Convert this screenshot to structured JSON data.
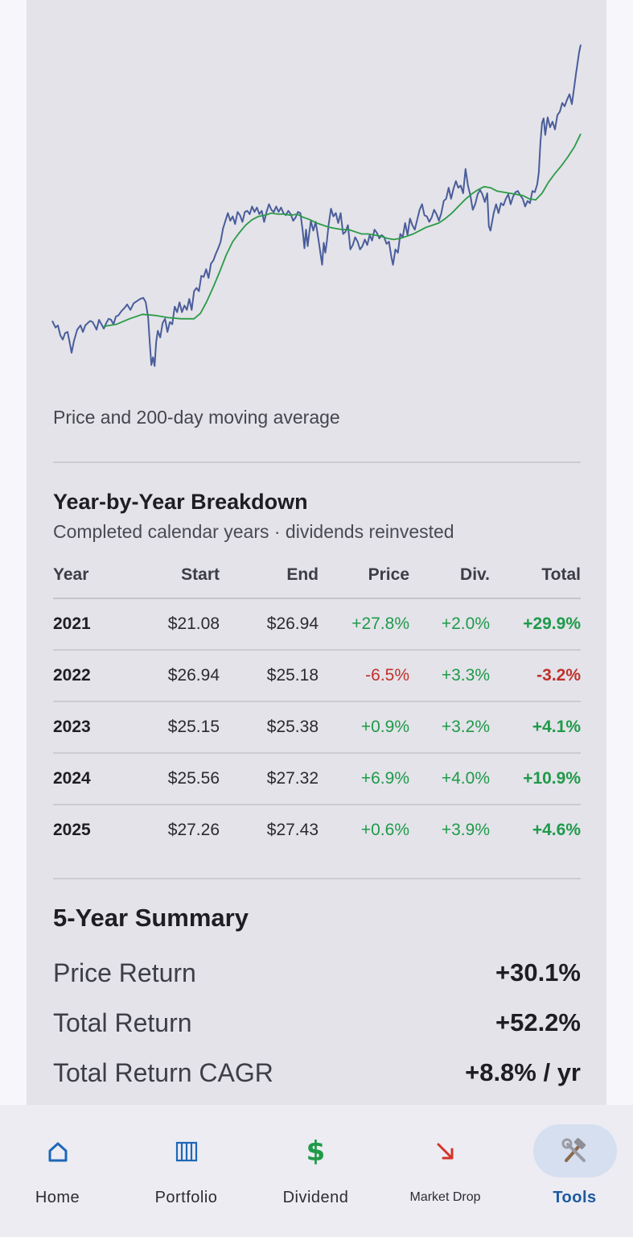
{
  "chart_data": {
    "type": "line",
    "title": "",
    "caption": "Price and 200-day moving average",
    "grid": false,
    "legend": "none",
    "series": [
      {
        "color": "#4a5d9b",
        "values": [
          [
            0,
            21.5
          ],
          [
            4,
            20.9
          ],
          [
            7,
            21.1
          ],
          [
            10,
            20.2
          ],
          [
            13,
            19.8
          ],
          [
            16,
            20.4
          ],
          [
            19,
            20.5
          ],
          [
            22,
            19.4
          ],
          [
            24,
            18.6
          ],
          [
            27,
            19.7
          ],
          [
            31,
            20.7
          ],
          [
            35,
            21.1
          ],
          [
            38,
            20.5
          ],
          [
            41,
            21.1
          ],
          [
            44,
            21.3
          ],
          [
            47,
            21.5
          ],
          [
            50,
            21.4
          ],
          [
            53,
            21.0
          ],
          [
            55,
            20.7
          ],
          [
            58,
            21.6
          ],
          [
            61,
            21.2
          ],
          [
            64,
            20.8
          ],
          [
            67,
            21.3
          ],
          [
            70,
            21.7
          ],
          [
            73,
            21.6
          ],
          [
            76,
            21.2
          ],
          [
            79,
            21.9
          ],
          [
            82,
            22.0
          ],
          [
            86,
            22.4
          ],
          [
            90,
            22.7
          ],
          [
            93,
            23.0
          ],
          [
            97,
            22.5
          ],
          [
            101,
            23.1
          ],
          [
            105,
            23.3
          ],
          [
            109,
            23.5
          ],
          [
            113,
            23.6
          ],
          [
            116,
            23.2
          ],
          [
            119,
            21.8
          ],
          [
            121,
            19.5
          ],
          [
            123,
            17.5
          ],
          [
            125,
            18.2
          ],
          [
            127,
            17.4
          ],
          [
            129,
            19.6
          ],
          [
            131,
            20.6
          ],
          [
            134,
            20.0
          ],
          [
            137,
            21.3
          ],
          [
            140,
            21.7
          ],
          [
            143,
            20.5
          ],
          [
            146,
            21.4
          ],
          [
            149,
            21.2
          ],
          [
            152,
            22.8
          ],
          [
            155,
            22.3
          ],
          [
            158,
            23.2
          ],
          [
            161,
            22.3
          ],
          [
            164,
            22.9
          ],
          [
            167,
            22.5
          ],
          [
            170,
            23.5
          ],
          [
            173,
            22.5
          ],
          [
            176,
            24.2
          ],
          [
            179,
            24.5
          ],
          [
            182,
            24.2
          ],
          [
            185,
            25.6
          ],
          [
            188,
            25.5
          ],
          [
            191,
            26.2
          ],
          [
            194,
            25.4
          ],
          [
            197,
            26.7
          ],
          [
            200,
            27.0
          ],
          [
            203,
            27.6
          ],
          [
            206,
            28.1
          ],
          [
            209,
            28.7
          ],
          [
            212,
            29.9
          ],
          [
            215,
            30.6
          ],
          [
            218,
            31.3
          ],
          [
            221,
            30.6
          ],
          [
            224,
            31.0
          ],
          [
            227,
            30.3
          ],
          [
            230,
            31.4
          ],
          [
            233,
            31.1
          ],
          [
            236,
            30.5
          ],
          [
            239,
            31.4
          ],
          [
            242,
            31.5
          ],
          [
            245,
            31.2
          ],
          [
            248,
            31.9
          ],
          [
            251,
            31.4
          ],
          [
            254,
            31.8
          ],
          [
            257,
            31.2
          ],
          [
            260,
            31.5
          ],
          [
            263,
            30.5
          ],
          [
            266,
            31.4
          ],
          [
            269,
            32.1
          ],
          [
            272,
            31.6
          ],
          [
            275,
            31.4
          ],
          [
            278,
            31.9
          ],
          [
            281,
            31.4
          ],
          [
            284,
            31.8
          ],
          [
            287,
            31.3
          ],
          [
            290,
            31.1
          ],
          [
            293,
            31.5
          ],
          [
            296,
            31.2
          ],
          [
            299,
            30.6
          ],
          [
            302,
            30.9
          ],
          [
            305,
            31.4
          ],
          [
            308,
            31.3
          ],
          [
            311,
            29.6
          ],
          [
            313,
            28.1
          ],
          [
            315,
            29.8
          ],
          [
            317,
            28.3
          ],
          [
            319,
            29.5
          ],
          [
            321,
            30.6
          ],
          [
            324,
            29.7
          ],
          [
            327,
            30.5
          ],
          [
            330,
            29.1
          ],
          [
            333,
            27.6
          ],
          [
            335,
            26.6
          ],
          [
            337,
            28.6
          ],
          [
            339,
            27.7
          ],
          [
            341,
            28.8
          ],
          [
            343,
            30.2
          ],
          [
            346,
            31.7
          ],
          [
            349,
            31.0
          ],
          [
            352,
            31.3
          ],
          [
            355,
            30.4
          ],
          [
            358,
            31.3
          ],
          [
            361,
            29.4
          ],
          [
            364,
            29.6
          ],
          [
            367,
            30.2
          ],
          [
            370,
            28.0
          ],
          [
            373,
            28.4
          ],
          [
            376,
            29.1
          ],
          [
            379,
            28.7
          ],
          [
            382,
            28.0
          ],
          [
            385,
            28.3
          ],
          [
            388,
            28.9
          ],
          [
            391,
            28.4
          ],
          [
            394,
            29.3
          ],
          [
            397,
            28.8
          ],
          [
            400,
            29.8
          ],
          [
            403,
            29.5
          ],
          [
            406,
            29.0
          ],
          [
            409,
            29.3
          ],
          [
            412,
            29.1
          ],
          [
            415,
            28.5
          ],
          [
            418,
            28.7
          ],
          [
            421,
            27.3
          ],
          [
            423,
            26.6
          ],
          [
            426,
            28.0
          ],
          [
            429,
            27.7
          ],
          [
            432,
            29.4
          ],
          [
            435,
            29.1
          ],
          [
            438,
            30.4
          ],
          [
            441,
            29.3
          ],
          [
            444,
            30.8
          ],
          [
            447,
            30.2
          ],
          [
            450,
            29.8
          ],
          [
            453,
            30.7
          ],
          [
            456,
            31.6
          ],
          [
            459,
            32.1
          ],
          [
            462,
            31.1
          ],
          [
            465,
            31.0
          ],
          [
            468,
            30.5
          ],
          [
            471,
            30.9
          ],
          [
            474,
            31.6
          ],
          [
            477,
            31.2
          ],
          [
            480,
            30.6
          ],
          [
            483,
            31.3
          ],
          [
            486,
            32.4
          ],
          [
            489,
            32.6
          ],
          [
            492,
            33.6
          ],
          [
            495,
            32.6
          ],
          [
            498,
            33.5
          ],
          [
            501,
            34.2
          ],
          [
            504,
            33.6
          ],
          [
            507,
            33.8
          ],
          [
            510,
            33.1
          ],
          [
            513,
            35.3
          ],
          [
            516,
            33.8
          ],
          [
            519,
            32.9
          ],
          [
            522,
            31.6
          ],
          [
            525,
            32.1
          ],
          [
            528,
            33.0
          ],
          [
            531,
            33.4
          ],
          [
            534,
            33.0
          ],
          [
            537,
            32.3
          ],
          [
            540,
            33.1
          ],
          [
            542,
            30.1
          ],
          [
            544,
            29.7
          ],
          [
            546,
            30.5
          ],
          [
            548,
            31.3
          ],
          [
            551,
            32.1
          ],
          [
            554,
            31.3
          ],
          [
            557,
            32.2
          ],
          [
            560,
            32.0
          ],
          [
            563,
            32.6
          ],
          [
            566,
            33.0
          ],
          [
            569,
            32.1
          ],
          [
            572,
            32.8
          ],
          [
            575,
            33.2
          ],
          [
            578,
            33.3
          ],
          [
            581,
            32.9
          ],
          [
            584,
            32.6
          ],
          [
            587,
            31.9
          ],
          [
            590,
            32.4
          ],
          [
            593,
            32.2
          ],
          [
            596,
            33.3
          ],
          [
            599,
            33.2
          ],
          [
            602,
            33.9
          ],
          [
            604,
            35.0
          ],
          [
            606,
            37.7
          ],
          [
            608,
            39.5
          ],
          [
            610,
            39.9
          ],
          [
            612,
            38.4
          ],
          [
            615,
            40.0
          ],
          [
            618,
            39.1
          ],
          [
            621,
            39.6
          ],
          [
            624,
            38.9
          ],
          [
            627,
            40.2
          ],
          [
            630,
            40.5
          ],
          [
            633,
            41.3
          ],
          [
            636,
            41.0
          ],
          [
            639,
            41.6
          ],
          [
            642,
            42.1
          ],
          [
            645,
            41.2
          ],
          [
            648,
            42.8
          ],
          [
            650,
            43.9
          ],
          [
            652,
            44.9
          ],
          [
            654,
            45.9
          ],
          [
            656,
            46.6
          ]
        ]
      },
      {
        "color": "#2a9b47",
        "values": [
          [
            64,
            21.0
          ],
          [
            80,
            21.2
          ],
          [
            96,
            21.7
          ],
          [
            112,
            22.1
          ],
          [
            128,
            22.0
          ],
          [
            144,
            21.8
          ],
          [
            160,
            21.7
          ],
          [
            176,
            21.7
          ],
          [
            184,
            22.2
          ],
          [
            192,
            23.3
          ],
          [
            200,
            24.6
          ],
          [
            208,
            26.0
          ],
          [
            216,
            27.5
          ],
          [
            224,
            28.7
          ],
          [
            232,
            29.5
          ],
          [
            240,
            30.2
          ],
          [
            248,
            30.7
          ],
          [
            256,
            31.0
          ],
          [
            264,
            31.1
          ],
          [
            272,
            31.3
          ],
          [
            280,
            31.2
          ],
          [
            288,
            31.2
          ],
          [
            296,
            31.1
          ],
          [
            304,
            31.2
          ],
          [
            312,
            30.9
          ],
          [
            320,
            30.7
          ],
          [
            328,
            30.4
          ],
          [
            336,
            30.2
          ],
          [
            344,
            30.0
          ],
          [
            352,
            29.9
          ],
          [
            360,
            29.8
          ],
          [
            368,
            29.8
          ],
          [
            376,
            29.6
          ],
          [
            384,
            29.4
          ],
          [
            392,
            29.4
          ],
          [
            400,
            29.3
          ],
          [
            408,
            29.2
          ],
          [
            416,
            29.0
          ],
          [
            424,
            28.9
          ],
          [
            432,
            29.0
          ],
          [
            440,
            29.2
          ],
          [
            448,
            29.4
          ],
          [
            456,
            29.7
          ],
          [
            464,
            30.0
          ],
          [
            472,
            30.2
          ],
          [
            480,
            30.4
          ],
          [
            488,
            30.8
          ],
          [
            496,
            31.3
          ],
          [
            504,
            31.9
          ],
          [
            512,
            32.5
          ],
          [
            520,
            33.0
          ],
          [
            528,
            33.4
          ],
          [
            536,
            33.7
          ],
          [
            544,
            33.6
          ],
          [
            552,
            33.3
          ],
          [
            560,
            33.2
          ],
          [
            568,
            33.1
          ],
          [
            576,
            33.0
          ],
          [
            584,
            32.9
          ],
          [
            592,
            32.6
          ],
          [
            600,
            32.5
          ],
          [
            608,
            33.1
          ],
          [
            616,
            34.1
          ],
          [
            624,
            34.9
          ],
          [
            632,
            35.6
          ],
          [
            640,
            36.4
          ],
          [
            648,
            37.3
          ],
          [
            656,
            38.5
          ]
        ]
      }
    ]
  },
  "breakdown": {
    "title": "Year-by-Year Breakdown",
    "subtitle": "Completed calendar years · dividends reinvested",
    "headers": {
      "year": "Year",
      "start": "Start",
      "end": "End",
      "price": "Price",
      "div": "Div.",
      "total": "Total"
    },
    "rows": [
      {
        "year": "2021",
        "start": "$21.08",
        "end": "$26.94",
        "price": "+27.8%",
        "div": "+2.0%",
        "total": "+29.9%"
      },
      {
        "year": "2022",
        "start": "$26.94",
        "end": "$25.18",
        "price": "-6.5%",
        "div": "+3.3%",
        "total": "-3.2%"
      },
      {
        "year": "2023",
        "start": "$25.15",
        "end": "$25.38",
        "price": "+0.9%",
        "div": "+3.2%",
        "total": "+4.1%"
      },
      {
        "year": "2024",
        "start": "$25.56",
        "end": "$27.32",
        "price": "+6.9%",
        "div": "+4.0%",
        "total": "+10.9%"
      },
      {
        "year": "2025",
        "start": "$27.26",
        "end": "$27.43",
        "price": "+0.6%",
        "div": "+3.9%",
        "total": "+4.6%"
      }
    ]
  },
  "summary": {
    "title": "5-Year Summary",
    "price_return_label": "Price Return",
    "price_return_value": "+30.1%",
    "total_return_label": "Total Return",
    "total_return_value": "+52.2%",
    "cagr_label": "Total Return CAGR",
    "cagr_value": "+8.8% / yr"
  },
  "nav": {
    "items": [
      {
        "label": "Home",
        "icon": "home-icon"
      },
      {
        "label": "Portfolio",
        "icon": "portfolio-bars-icon"
      },
      {
        "label": "Dividend",
        "icon": "dollar-icon"
      },
      {
        "label": "Market Drop",
        "icon": "down-arrow-icon"
      },
      {
        "label": "Tools",
        "icon": "hammer-wrench-icon"
      }
    ],
    "active": "Tools"
  },
  "colors": {
    "price_line": "#4a5d9b",
    "ma_line": "#2a9b47",
    "positive": "#1f9a4a",
    "negative": "#c0312b",
    "active_nav": "#1c5aa0"
  }
}
